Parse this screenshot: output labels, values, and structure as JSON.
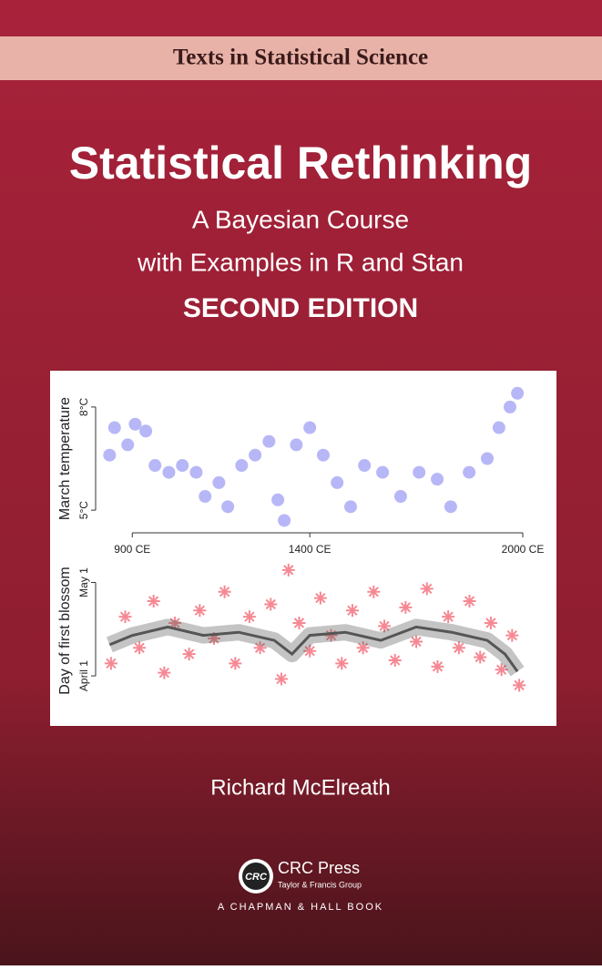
{
  "series_label": "Texts in Statistical Science",
  "title": "Statistical Rethinking",
  "subtitle": [
    "A Bayesian Course",
    "with Examples in R and Stan"
  ],
  "edition": "SECOND EDITION",
  "chart_data": [
    {
      "type": "scatter",
      "y_label": "March temperature",
      "color": "#7b7bf0",
      "x": [
        836,
        850,
        887,
        908,
        938,
        964,
        1003,
        1041,
        1080,
        1105,
        1144,
        1169,
        1208,
        1246,
        1285,
        1310,
        1328,
        1362,
        1400,
        1438,
        1477,
        1515,
        1554,
        1605,
        1656,
        1708,
        1759,
        1797,
        1849,
        1900,
        1933,
        1964,
        1985
      ],
      "values": [
        6.6,
        7.4,
        6.9,
        7.5,
        7.3,
        6.3,
        6.1,
        6.3,
        6.1,
        5.4,
        5.8,
        5.1,
        6.3,
        6.6,
        7.0,
        5.3,
        4.7,
        6.9,
        7.4,
        6.6,
        5.8,
        5.1,
        6.3,
        6.1,
        5.4,
        6.1,
        5.9,
        5.1,
        6.1,
        6.5,
        7.4,
        8.0,
        8.4
      ],
      "xlim": [
        830,
        2000
      ],
      "ylim": [
        4.5,
        8.5
      ],
      "xticks": [
        {
          "value": 900,
          "label": "900 CE"
        },
        {
          "value": 1400,
          "label": "1400 CE"
        },
        {
          "value": 2000,
          "label": "2000 CE"
        }
      ],
      "yticks": [
        {
          "value": 5,
          "label": "5°C"
        },
        {
          "value": 8,
          "label": "8°C"
        }
      ]
    },
    {
      "type": "scatter",
      "y_label": "Day of first blossom",
      "color": "#ee3b4b",
      "x": [
        840,
        880,
        920,
        960,
        990,
        1020,
        1060,
        1090,
        1130,
        1160,
        1190,
        1230,
        1260,
        1290,
        1320,
        1340,
        1370,
        1400,
        1430,
        1460,
        1490,
        1520,
        1550,
        1580,
        1610,
        1640,
        1670,
        1700,
        1730,
        1760,
        1790,
        1820,
        1850,
        1880,
        1910,
        1940,
        1970,
        1990
      ],
      "values": [
        95,
        110,
        100,
        115,
        92,
        108,
        98,
        112,
        103,
        118,
        95,
        110,
        100,
        114,
        90,
        125,
        108,
        99,
        116,
        104,
        95,
        112,
        100,
        118,
        107,
        96,
        113,
        102,
        119,
        94,
        110,
        100,
        115,
        97,
        108,
        93,
        104,
        88
      ],
      "trend": {
        "color": "#555555",
        "x": [
          836,
          900,
          1000,
          1100,
          1200,
          1300,
          1350,
          1400,
          1500,
          1600,
          1700,
          1800,
          1900,
          1950,
          1985
        ],
        "values": [
          101,
          104,
          106.7,
          104,
          105,
          102.4,
          98,
          104,
          105,
          102.4,
          106.7,
          105,
          102.4,
          98,
          92.4
        ]
      },
      "xlim": [
        830,
        2000
      ],
      "ylim": [
        84,
        127
      ],
      "yticks": [
        {
          "value": 91,
          "label": "April 1"
        },
        {
          "value": 121,
          "label": "May 1"
        }
      ]
    }
  ],
  "author": "Richard McElreath",
  "publisher": {
    "logo": "CRC",
    "name": "CRC Press",
    "group": "Taylor & Francis Group",
    "imprint": "A CHAPMAN & HALL BOOK"
  }
}
